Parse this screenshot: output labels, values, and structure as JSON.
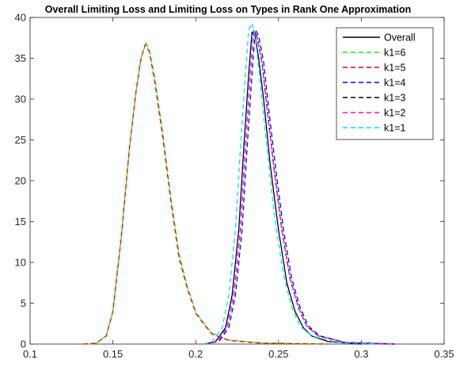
{
  "chart_data": {
    "type": "line",
    "title": "Overall Limiting Loss and Limiting Loss on Types in Rank One Approximation",
    "xlabel": "",
    "ylabel": "",
    "xlim": [
      0.1,
      0.35
    ],
    "ylim": [
      0,
      40
    ],
    "x_ticks": [
      "0.1",
      "0.15",
      "0.2",
      "0.25",
      "0.3",
      "0.35"
    ],
    "y_ticks": [
      "0",
      "5",
      "10",
      "15",
      "20",
      "25",
      "30",
      "35",
      "40"
    ],
    "grid": false,
    "legend_position": "top-right",
    "series": [
      {
        "name": "Overall",
        "color": "#000000",
        "style": "solid",
        "points": [
          [
            0.205,
            0
          ],
          [
            0.212,
            0.3
          ],
          [
            0.218,
            2
          ],
          [
            0.222,
            6
          ],
          [
            0.226,
            14
          ],
          [
            0.229,
            24
          ],
          [
            0.232,
            33
          ],
          [
            0.234,
            38.2
          ],
          [
            0.236,
            37.6
          ],
          [
            0.238,
            35
          ],
          [
            0.241,
            30
          ],
          [
            0.245,
            22
          ],
          [
            0.25,
            14
          ],
          [
            0.255,
            7.5
          ],
          [
            0.26,
            4
          ],
          [
            0.265,
            2
          ],
          [
            0.27,
            1
          ],
          [
            0.28,
            0.3
          ],
          [
            0.3,
            0
          ]
        ]
      },
      {
        "name": "k1=6",
        "color": "#00ff00",
        "style": "dashed",
        "points": [
          [
            0.135,
            0
          ],
          [
            0.14,
            0.1
          ],
          [
            0.146,
            1
          ],
          [
            0.15,
            4
          ],
          [
            0.155,
            13
          ],
          [
            0.16,
            24
          ],
          [
            0.164,
            31
          ],
          [
            0.167,
            35
          ],
          [
            0.17,
            36.9
          ],
          [
            0.172,
            36
          ],
          [
            0.175,
            33
          ],
          [
            0.18,
            26
          ],
          [
            0.185,
            18
          ],
          [
            0.19,
            11
          ],
          [
            0.195,
            7
          ],
          [
            0.2,
            4
          ],
          [
            0.205,
            2.5
          ],
          [
            0.21,
            1.3
          ],
          [
            0.22,
            0.5
          ],
          [
            0.24,
            0.15
          ],
          [
            0.28,
            0
          ]
        ]
      },
      {
        "name": "k1=5",
        "color": "#ff0000",
        "style": "dashed",
        "points": [
          [
            0.132,
            0
          ],
          [
            0.14,
            0.1
          ],
          [
            0.146,
            1
          ],
          [
            0.15,
            4
          ],
          [
            0.155,
            13
          ],
          [
            0.16,
            24
          ],
          [
            0.164,
            31
          ],
          [
            0.167,
            35
          ],
          [
            0.1695,
            36.7
          ],
          [
            0.172,
            35.8
          ],
          [
            0.175,
            32.5
          ],
          [
            0.18,
            25.5
          ],
          [
            0.185,
            17.5
          ],
          [
            0.19,
            10.5
          ],
          [
            0.195,
            6.8
          ],
          [
            0.2,
            3.8
          ],
          [
            0.205,
            2.4
          ],
          [
            0.21,
            1.2
          ],
          [
            0.22,
            0.45
          ],
          [
            0.24,
            0.1
          ],
          [
            0.28,
            0
          ]
        ]
      },
      {
        "name": "k1=4",
        "color": "#0000ff",
        "style": "dashed",
        "points": [
          [
            0.205,
            0
          ],
          [
            0.214,
            0.3
          ],
          [
            0.22,
            2
          ],
          [
            0.224,
            6
          ],
          [
            0.228,
            14
          ],
          [
            0.231,
            24
          ],
          [
            0.234,
            33
          ],
          [
            0.236,
            38.5
          ],
          [
            0.238,
            37.8
          ],
          [
            0.241,
            34.5
          ],
          [
            0.244,
            29
          ],
          [
            0.248,
            22
          ],
          [
            0.253,
            14
          ],
          [
            0.258,
            8
          ],
          [
            0.263,
            4.5
          ],
          [
            0.268,
            2.2
          ],
          [
            0.275,
            1
          ],
          [
            0.29,
            0.2
          ],
          [
            0.32,
            0
          ]
        ]
      },
      {
        "name": "k1=3",
        "color": "#000000",
        "style": "dashed",
        "points": [
          [
            0.205,
            0
          ],
          [
            0.213,
            0.3
          ],
          [
            0.219,
            2
          ],
          [
            0.223,
            6
          ],
          [
            0.227,
            14
          ],
          [
            0.23,
            24
          ],
          [
            0.233,
            33
          ],
          [
            0.235,
            38.4
          ],
          [
            0.237,
            37.7
          ],
          [
            0.24,
            34.5
          ],
          [
            0.243,
            29
          ],
          [
            0.247,
            22
          ],
          [
            0.252,
            14
          ],
          [
            0.257,
            8
          ],
          [
            0.262,
            4.5
          ],
          [
            0.267,
            2.2
          ],
          [
            0.274,
            1
          ],
          [
            0.29,
            0.2
          ],
          [
            0.32,
            0
          ]
        ]
      },
      {
        "name": "k1=2",
        "color": "#ff00ff",
        "style": "dashed",
        "points": [
          [
            0.205,
            0
          ],
          [
            0.213,
            0.3
          ],
          [
            0.219,
            2
          ],
          [
            0.223,
            6
          ],
          [
            0.227,
            14
          ],
          [
            0.23,
            24
          ],
          [
            0.233,
            33
          ],
          [
            0.235,
            38.3
          ],
          [
            0.237,
            37.6
          ],
          [
            0.24,
            34.5
          ],
          [
            0.243,
            29
          ],
          [
            0.247,
            22
          ],
          [
            0.252,
            14
          ],
          [
            0.257,
            8
          ],
          [
            0.262,
            4.5
          ],
          [
            0.267,
            2.2
          ],
          [
            0.274,
            1
          ],
          [
            0.29,
            0.2
          ],
          [
            0.32,
            0
          ]
        ]
      },
      {
        "name": "k1=1",
        "color": "#00e5e5",
        "style": "dashed",
        "points": [
          [
            0.205,
            0
          ],
          [
            0.21,
            0.3
          ],
          [
            0.216,
            2
          ],
          [
            0.22,
            6
          ],
          [
            0.224,
            14
          ],
          [
            0.227,
            24
          ],
          [
            0.23,
            33
          ],
          [
            0.232,
            38.5
          ],
          [
            0.234,
            39.3
          ],
          [
            0.236,
            37.5
          ],
          [
            0.239,
            32
          ],
          [
            0.243,
            24
          ],
          [
            0.248,
            15
          ],
          [
            0.253,
            8.5
          ],
          [
            0.258,
            4.5
          ],
          [
            0.263,
            2.2
          ],
          [
            0.27,
            1
          ],
          [
            0.285,
            0.2
          ],
          [
            0.31,
            0
          ]
        ]
      }
    ]
  }
}
